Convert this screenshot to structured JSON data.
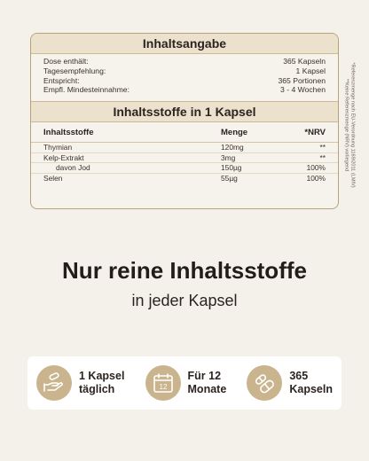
{
  "label": {
    "title": "Inhaltsangabe",
    "facts": [
      {
        "key": "Dose enthält:",
        "value": "365 Kapseln"
      },
      {
        "key": "Tagesempfehlung:",
        "value": "1 Kapsel"
      },
      {
        "key": "Entspricht:",
        "value": "365 Portionen"
      },
      {
        "key": "Empfl. Mindesteinnahme:",
        "value": "3 - 4 Wochen"
      }
    ],
    "section_title": "Inhaltsstoffe in 1 Kapsel",
    "columns": {
      "name": "Inhaltsstoffe",
      "amount": "Menge",
      "nrv": "*NRV"
    },
    "rows": [
      {
        "name": "Thymian",
        "amount": "120mg",
        "nrv": "**"
      },
      {
        "name": "Kelp-Extrakt",
        "amount": "3mg",
        "nrv": "**"
      },
      {
        "name": "davon Jod",
        "amount": "150µg",
        "nrv": "100%"
      },
      {
        "name": "Selen",
        "amount": "55µg",
        "nrv": "100%"
      }
    ],
    "footnote_1": "*Referenzmenge nach EU-Verordnung 1169/2011 (LMIV)",
    "footnote_2": "**Keine Referenzmenge (NRV) vorliegend"
  },
  "headline": "Nur reine Inhaltsstoffe",
  "subline": "in jeder Kapsel",
  "features": [
    {
      "icon": "hand-capsule-icon",
      "line1": "1 Kapsel",
      "line2": "täglich"
    },
    {
      "icon": "calendar-icon",
      "line1": "Für 12",
      "line2": "Monate",
      "calendar_number": "12"
    },
    {
      "icon": "capsules-icon",
      "line1": "365",
      "line2": "Kapseln"
    }
  ],
  "colors": {
    "background": "#f4f0ea",
    "accent": "#c9b48e",
    "band": "#ece1cc",
    "border": "#b8a27a"
  }
}
